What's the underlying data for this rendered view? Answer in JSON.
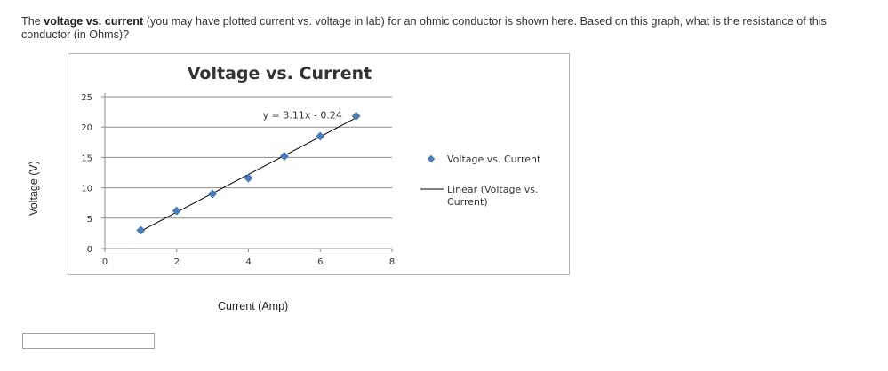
{
  "question": {
    "intro": "The ",
    "bold": "voltage vs. current",
    "rest": " (you may have plotted current vs. voltage in lab) for an ohmic conductor is shown here. Based on this graph, what is the resistance of this conductor (in Ohms)?"
  },
  "answer": {
    "value": ""
  },
  "chart_data": {
    "type": "scatter",
    "title": "Voltage vs. Current",
    "xlabel": "Current (Amp)",
    "ylabel": "Voltage (V)",
    "xlim": [
      0,
      8
    ],
    "ylim": [
      0,
      25
    ],
    "xticks": [
      0,
      2,
      4,
      6,
      8
    ],
    "yticks": [
      0,
      5,
      10,
      15,
      20,
      25
    ],
    "grid": "horizontal",
    "legend_position": "right",
    "series": [
      {
        "name": "Voltage vs. Current",
        "color": "#4a7ebb",
        "marker": "diamond",
        "x": [
          1,
          2,
          3,
          4,
          5,
          6,
          7
        ],
        "y": [
          3.0,
          6.2,
          9.0,
          11.6,
          15.2,
          18.5,
          21.8
        ]
      }
    ],
    "trendline": {
      "name": "Linear (Voltage vs. Current)",
      "legend_lines": [
        "Linear (Voltage vs.",
        "Current)"
      ],
      "slope": 3.11,
      "intercept": -0.24,
      "x_range": [
        1,
        7
      ],
      "equation": "y = 3.11x - 0.24",
      "color": "#000000"
    }
  }
}
